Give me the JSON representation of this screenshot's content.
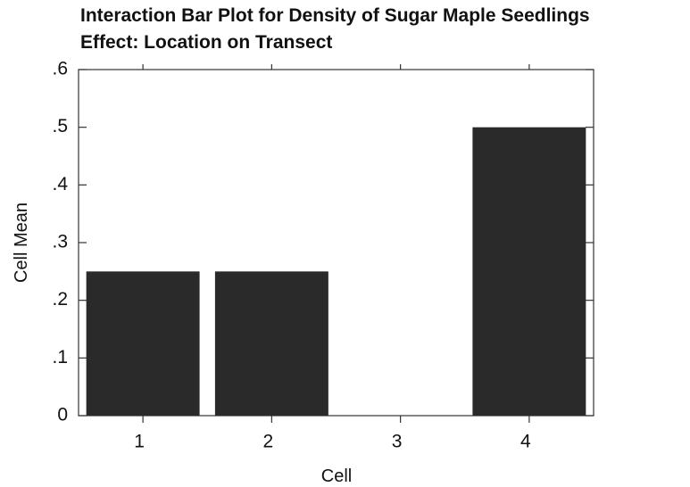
{
  "chart_data": {
    "type": "bar",
    "title": "Interaction Bar Plot for Density of Sugar Maple Seedlings",
    "subtitle": "Effect: Location on Transect",
    "x_label": "Cell",
    "y_label": "Cell Mean",
    "categories": [
      "1",
      "2",
      "3",
      "4"
    ],
    "values": [
      0.25,
      0.25,
      0,
      0.5
    ],
    "color": "#2a2a2a",
    "ylim": [
      0,
      0.6
    ],
    "yticks": [
      0,
      {
        "value": 0.1,
        "label": ".1"
      },
      {
        "value": 0.2,
        "label": ".2"
      },
      {
        "value": 0.3,
        "label": ".3"
      },
      {
        "value": 0.4,
        "label": ".4"
      },
      {
        "value": 0.5,
        "label": ".5"
      },
      {
        "value": 0.6,
        "label": ".6"
      }
    ],
    "grid": false
  }
}
